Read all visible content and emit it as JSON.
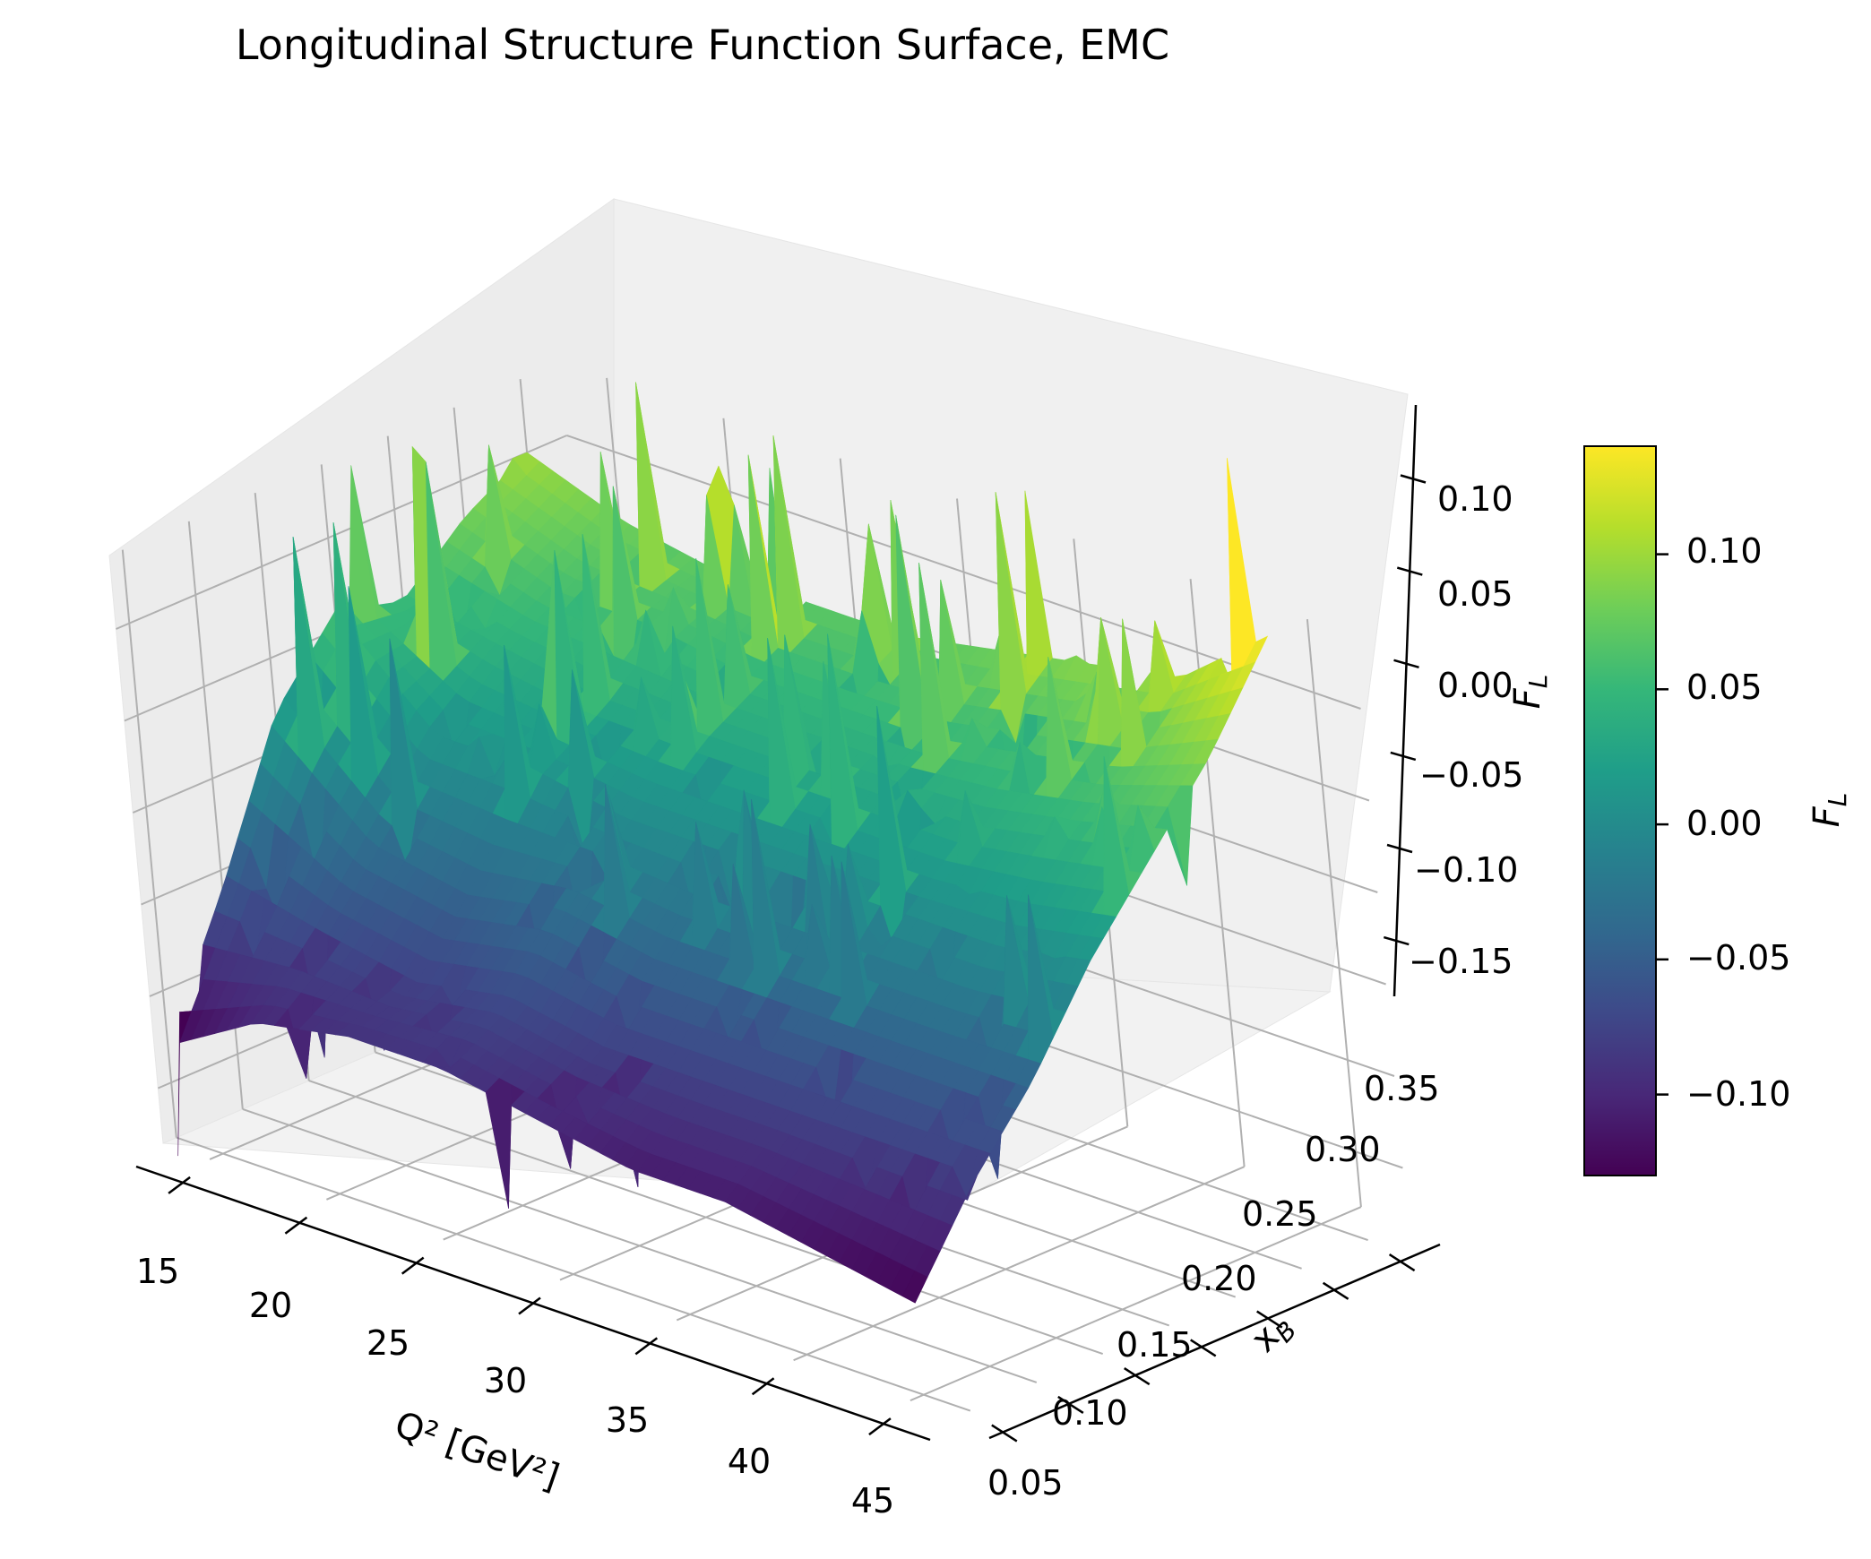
{
  "chart_data": {
    "type": "surface",
    "title": "Longitudinal Structure Function Surface, EMC",
    "xlabel": "Q² [GeV²]",
    "ylabel": "x_B",
    "zlabel": "F_L",
    "colorbar_label": "F_L",
    "colormap": "viridis",
    "colormap_stops": [
      "#440154",
      "#482878",
      "#3e4989",
      "#31688e",
      "#26828e",
      "#1f9e89",
      "#35b779",
      "#6ece58",
      "#b5de2b",
      "#fde725"
    ],
    "x_ticks": [
      "15",
      "20",
      "25",
      "30",
      "35",
      "40",
      "45"
    ],
    "y_ticks": [
      "0.05",
      "0.10",
      "0.15",
      "0.20",
      "0.25",
      "0.30",
      "0.35"
    ],
    "z_ticks": [
      "−0.15",
      "−0.10",
      "−0.05",
      "0.00",
      "0.05",
      "0.10"
    ],
    "colorbar_ticks": [
      "−0.10",
      "−0.05",
      "0.00",
      "0.05",
      "0.10"
    ],
    "x_range": [
      13,
      47
    ],
    "y_range": [
      0.04,
      0.38
    ],
    "z_range": [
      -0.18,
      0.14
    ],
    "colorbar_range": [
      -0.13,
      0.14
    ],
    "grid": true,
    "note_values": "Surface sampled on a grid; F_L rises with x_B and falls toward low Q², with many sharp spikes",
    "surface_samples": {
      "q2": [
        13,
        17,
        21,
        25,
        29,
        33,
        37,
        41,
        45
      ],
      "xb": [
        0.05,
        0.1,
        0.15,
        0.2,
        0.25,
        0.3,
        0.35
      ],
      "fl": [
        [
          -0.13,
          -0.06,
          0.02,
          0.06,
          0.05,
          0.08,
          0.1
        ],
        [
          -0.1,
          -0.07,
          -0.03,
          0.01,
          0.04,
          0.06,
          0.08
        ],
        [
          -0.09,
          -0.08,
          -0.04,
          0.01,
          0.03,
          0.06,
          0.07
        ],
        [
          -0.09,
          -0.07,
          -0.03,
          0.0,
          0.03,
          0.05,
          0.07
        ],
        [
          -0.1,
          -0.08,
          -0.04,
          0.0,
          0.03,
          0.05,
          0.07
        ],
        [
          -0.11,
          -0.08,
          -0.04,
          0.0,
          0.03,
          0.05,
          0.08
        ],
        [
          -0.11,
          -0.08,
          -0.04,
          0.0,
          0.03,
          0.06,
          0.09
        ],
        [
          -0.12,
          -0.08,
          -0.04,
          0.0,
          0.04,
          0.07,
          0.1
        ],
        [
          -0.13,
          -0.08,
          -0.04,
          0.01,
          0.05,
          0.09,
          0.14
        ]
      ]
    }
  }
}
